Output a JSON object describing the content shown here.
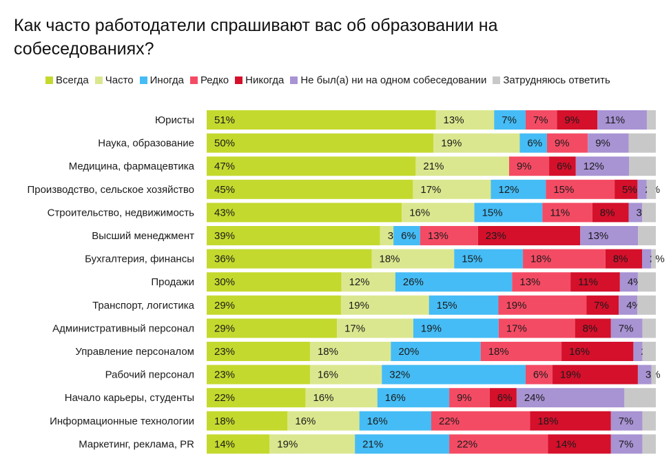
{
  "chart_data": {
    "type": "bar",
    "orientation": "horizontal",
    "stacked": true,
    "title": "Как часто работодатели спрашивают вас об образовании на собеседованиях?",
    "legend_position": "top",
    "categories": [
      "Юристы",
      "Наука, образование",
      "Медицина, фармацевтика",
      "Производство, сельское хозяйство",
      "Строительство, недвижимость",
      "Высший менеджмент",
      "Бухгалтерия, финансы",
      "Продажи",
      "Транспорт, логистика",
      "Административный персонал",
      "Управление персоналом",
      "Рабочий персонал",
      "Начало карьеры, студенты",
      "Информационные технологии",
      "Маркетинг, реклама, PR"
    ],
    "series": [
      {
        "name": "Всегда",
        "color": "#c4d92e",
        "values": [
          51,
          50,
          47,
          45,
          43,
          39,
          36,
          30,
          29,
          29,
          23,
          23,
          22,
          18,
          14
        ],
        "labels": [
          "51%",
          "50%",
          "47%",
          "45%",
          "43%",
          "39%",
          "36%",
          "30%",
          "29%",
          "29%",
          "23%",
          "23%",
          "22%",
          "18%",
          "14%"
        ]
      },
      {
        "name": "Часто",
        "color": "#dbe78e",
        "values": [
          13,
          19,
          21,
          17,
          16,
          3,
          18,
          12,
          19,
          17,
          18,
          16,
          16,
          16,
          19
        ],
        "labels": [
          "13%",
          "19%",
          "21%",
          "17%",
          "16%",
          "3%",
          "18%",
          "12%",
          "19%",
          "17%",
          "18%",
          "16%",
          "16%",
          "16%",
          "19%"
        ]
      },
      {
        "name": "Иногда",
        "color": "#45bcf5",
        "values": [
          7,
          6,
          0,
          12,
          15,
          6,
          15,
          26,
          15,
          19,
          20,
          32,
          16,
          16,
          21
        ],
        "labels": [
          "7%",
          "6%",
          "",
          "12%",
          "15%",
          "6%",
          "15%",
          "26%",
          "15%",
          "19%",
          "20%",
          "32%",
          "16%",
          "16%",
          "21%"
        ]
      },
      {
        "name": "Редко",
        "color": "#f44b64",
        "values": [
          7,
          9,
          9,
          15,
          11,
          13,
          18,
          13,
          19,
          17,
          18,
          6,
          9,
          22,
          22
        ],
        "labels": [
          "7%",
          "9%",
          "9%",
          "15%",
          "11%",
          "13%",
          "18%",
          "13%",
          "19%",
          "17%",
          "18%",
          "6%",
          "9%",
          "22%",
          "22%"
        ]
      },
      {
        "name": "Никогда",
        "color": "#d4102b",
        "values": [
          9,
          0,
          6,
          5,
          8,
          23,
          8,
          11,
          7,
          8,
          16,
          19,
          6,
          18,
          14
        ],
        "labels": [
          "9%",
          "",
          "6%",
          "5%",
          "8%",
          "23%",
          "8%",
          "11%",
          "7%",
          "8%",
          "16%",
          "19%",
          "6%",
          "18%",
          "14%"
        ]
      },
      {
        "name": "Не был(а) ни на одном собеседовании",
        "color": "#a893d3",
        "values": [
          11,
          9,
          12,
          2,
          3,
          13,
          2,
          4,
          4,
          7,
          2,
          3,
          24,
          7,
          7
        ],
        "labels": [
          "11%",
          "9%",
          "12%",
          "2%",
          "3%",
          "13%",
          "2%",
          "4%",
          "4%",
          "7%",
          "2%",
          "3%",
          "24%",
          "7%",
          "7%"
        ]
      },
      {
        "name": "Затрудняюсь ответить",
        "color": "#c8c8c8",
        "values": [
          2,
          6,
          6,
          2,
          3,
          4,
          1,
          4,
          4,
          3,
          3,
          1,
          7,
          3,
          3
        ],
        "labels": [
          "",
          "",
          "",
          "",
          "",
          "",
          "",
          "",
          "",
          "",
          "",
          "",
          "",
          "",
          ""
        ]
      }
    ],
    "xlim": [
      0,
      100
    ],
    "grid": false,
    "unit": "%"
  }
}
